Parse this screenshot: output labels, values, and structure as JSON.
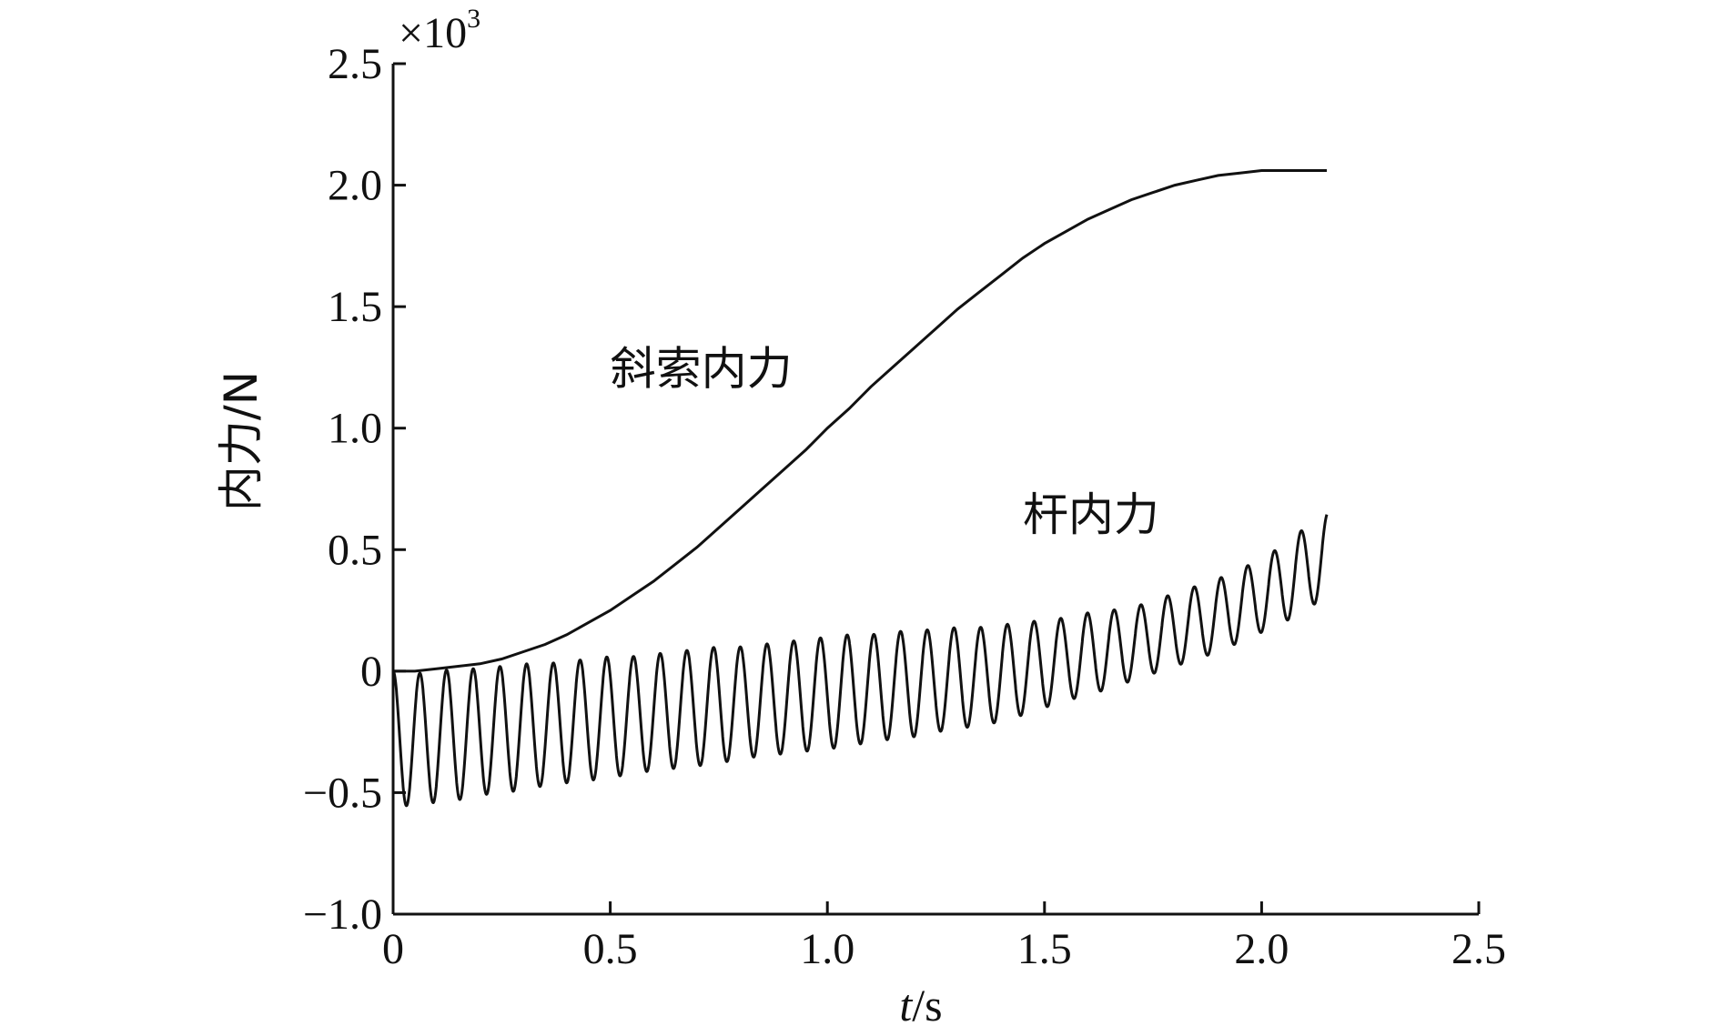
{
  "chart_data": {
    "type": "line",
    "xlabel_italic": "t",
    "xlabel_unit": "/s",
    "ylabel": "内力/N",
    "y_multiplier_base": "×10",
    "y_multiplier_exp": "3",
    "xlim": [
      0,
      2.5
    ],
    "ylim": [
      -1.0,
      2.5
    ],
    "x_ticks": [
      0,
      0.5,
      1.0,
      1.5,
      2.0,
      2.5
    ],
    "x_tick_labels": [
      "0",
      "0.5",
      "1.0",
      "1.5",
      "2.0",
      "2.5"
    ],
    "y_ticks": [
      -1.0,
      -0.5,
      0,
      0.5,
      1.0,
      1.5,
      2.0,
      2.5
    ],
    "y_tick_labels": [
      "−1.0",
      "−0.5",
      "0",
      "0.5",
      "1.0",
      "1.5",
      "2.0",
      "2.5"
    ],
    "grid": false,
    "legend": "none",
    "line_color": "#111111",
    "annotations": [
      {
        "text": "斜索内力",
        "x": 0.5,
        "y": 1.18
      },
      {
        "text": "杆内力",
        "x": 1.45,
        "y": 0.58
      }
    ],
    "series": [
      {
        "x": [
          0,
          0.05,
          0.1,
          0.15,
          0.2,
          0.25,
          0.3,
          0.35,
          0.4,
          0.45,
          0.5,
          0.55,
          0.6,
          0.65,
          0.7,
          0.75,
          0.8,
          0.85,
          0.9,
          0.95,
          1.0,
          1.05,
          1.1,
          1.15,
          1.2,
          1.25,
          1.3,
          1.35,
          1.4,
          1.45,
          1.5,
          1.55,
          1.6,
          1.65,
          1.7,
          1.75,
          1.8,
          1.85,
          1.9,
          1.95,
          2.0,
          2.05,
          2.1,
          2.15
        ],
        "y": [
          0,
          0,
          0.01,
          0.02,
          0.03,
          0.05,
          0.08,
          0.11,
          0.15,
          0.2,
          0.25,
          0.31,
          0.37,
          0.44,
          0.51,
          0.59,
          0.67,
          0.75,
          0.83,
          0.91,
          1.0,
          1.08,
          1.17,
          1.25,
          1.33,
          1.41,
          1.49,
          1.56,
          1.63,
          1.7,
          1.76,
          1.81,
          1.86,
          1.9,
          1.94,
          1.97,
          2.0,
          2.02,
          2.04,
          2.05,
          2.06,
          2.06,
          2.06,
          2.06
        ]
      },
      {
        "x": [
          0,
          0.05,
          0.1,
          0.15,
          0.2,
          0.25,
          0.3,
          0.35,
          0.4,
          0.45,
          0.5,
          0.55,
          0.6,
          0.65,
          0.7,
          0.75,
          0.8,
          0.85,
          0.9,
          0.95,
          1.0,
          1.05,
          1.1,
          1.15,
          1.2,
          1.25,
          1.3,
          1.35,
          1.4,
          1.45,
          1.5,
          1.55,
          1.6,
          1.65,
          1.7,
          1.75,
          1.8,
          1.85,
          1.9,
          1.95,
          2.0,
          2.05,
          2.1,
          2.15
        ],
        "y_center": [
          -0.28,
          -0.28,
          -0.27,
          -0.26,
          -0.25,
          -0.24,
          -0.23,
          -0.22,
          -0.21,
          -0.2,
          -0.19,
          -0.18,
          -0.17,
          -0.16,
          -0.15,
          -0.14,
          -0.13,
          -0.12,
          -0.11,
          -0.1,
          -0.09,
          -0.08,
          -0.07,
          -0.06,
          -0.05,
          -0.04,
          -0.03,
          -0.02,
          -0.01,
          0.01,
          0.03,
          0.05,
          0.07,
          0.09,
          0.11,
          0.14,
          0.17,
          0.2,
          0.23,
          0.27,
          0.31,
          0.36,
          0.42,
          0.48
        ],
        "amplitude": [
          0.28,
          0.27,
          0.27,
          0.27,
          0.26,
          0.26,
          0.26,
          0.25,
          0.25,
          0.25,
          0.25,
          0.24,
          0.24,
          0.24,
          0.24,
          0.24,
          0.23,
          0.23,
          0.23,
          0.23,
          0.23,
          0.23,
          0.22,
          0.22,
          0.22,
          0.21,
          0.21,
          0.2,
          0.2,
          0.19,
          0.18,
          0.17,
          0.17,
          0.16,
          0.15,
          0.15,
          0.15,
          0.15,
          0.15,
          0.15,
          0.15,
          0.16,
          0.17,
          0.17
        ],
        "oscillation_period": 0.0615
      }
    ]
  }
}
